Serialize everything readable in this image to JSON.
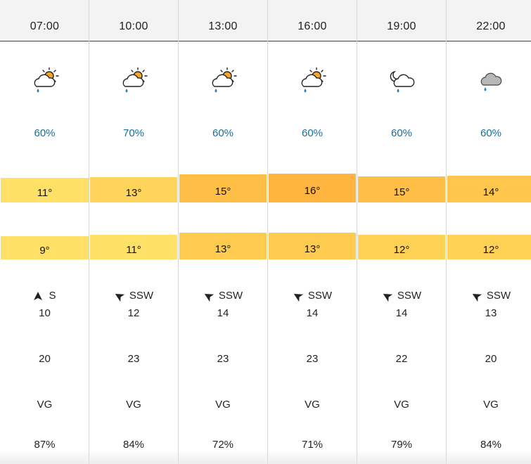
{
  "forecast": {
    "columns": [
      {
        "time": "07:00",
        "icon": "sun-cloud-rain-icon",
        "precip": "60%",
        "temp": "11°",
        "temp_color": "#ffe067",
        "feels": "9°",
        "feels_color": "#ffe067",
        "wind_dir": "S",
        "wind_rotation": 0,
        "wind_speed": "10",
        "gust": "20",
        "visibility": "VG",
        "humidity": "87%"
      },
      {
        "time": "10:00",
        "icon": "sun-cloud-rain-icon",
        "precip": "70%",
        "temp": "13°",
        "temp_color": "#ffd45a",
        "feels": "11°",
        "feels_color": "#ffe067",
        "wind_dir": "SSW",
        "wind_rotation": -60,
        "wind_speed": "12",
        "gust": "23",
        "visibility": "VG",
        "humidity": "84%"
      },
      {
        "time": "13:00",
        "icon": "sun-cloud-rain-icon",
        "precip": "60%",
        "temp": "15°",
        "temp_color": "#ffbf46",
        "feels": "13°",
        "feels_color": "#ffcb4f",
        "wind_dir": "SSW",
        "wind_rotation": -60,
        "wind_speed": "14",
        "gust": "23",
        "visibility": "VG",
        "humidity": "72%"
      },
      {
        "time": "16:00",
        "icon": "sun-cloud-rain-icon",
        "precip": "60%",
        "temp": "16°",
        "temp_color": "#ffb43e",
        "feels": "13°",
        "feels_color": "#ffcb4f",
        "wind_dir": "SSW",
        "wind_rotation": -60,
        "wind_speed": "14",
        "gust": "23",
        "visibility": "VG",
        "humidity": "71%"
      },
      {
        "time": "19:00",
        "icon": "moon-cloud-rain-icon",
        "precip": "60%",
        "temp": "15°",
        "temp_color": "#ffbf46",
        "feels": "12°",
        "feels_color": "#ffd154",
        "wind_dir": "SSW",
        "wind_rotation": -60,
        "wind_speed": "14",
        "gust": "22",
        "visibility": "VG",
        "humidity": "79%"
      },
      {
        "time": "22:00",
        "icon": "cloud-rain-icon",
        "precip": "60%",
        "temp": "14°",
        "temp_color": "#ffc64b",
        "feels": "12°",
        "feels_color": "#ffd154",
        "wind_dir": "SSW",
        "wind_rotation": -60,
        "wind_speed": "13",
        "gust": "20",
        "visibility": "VG",
        "humidity": "84%"
      }
    ]
  },
  "colors": {
    "precip_text": "#156e9c",
    "header_bg": "#f3f3f3",
    "rain_drop": "#2a7fc1",
    "sun": "#f5a623"
  }
}
